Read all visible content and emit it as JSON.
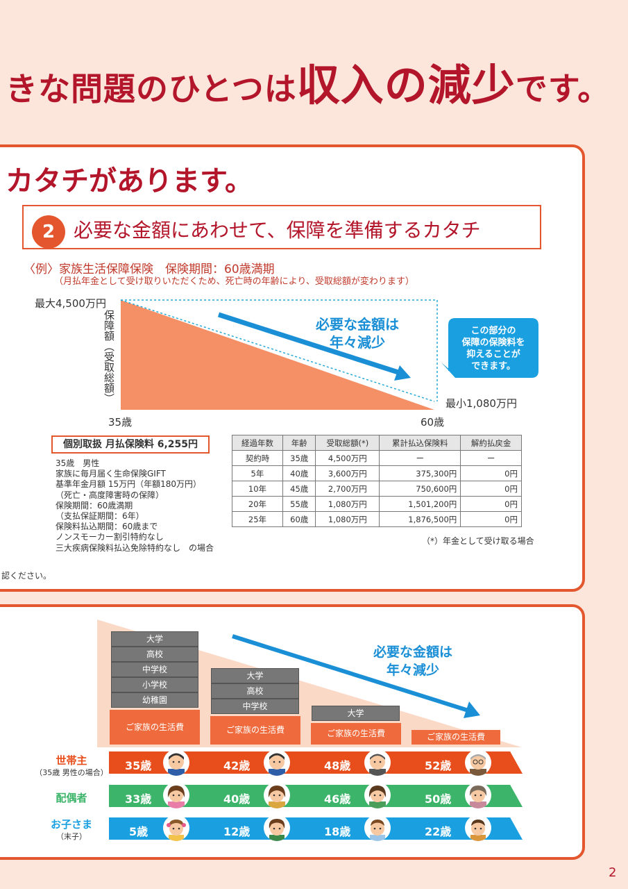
{
  "headline": {
    "pre": "きな問題のひとつは",
    "emph": "収入の減少",
    "post": "です。"
  },
  "panel1": {
    "title": "カタチがあります。",
    "number": "2",
    "subtitle": "必要な金額にあわせて、保障を準備するカタチ",
    "example_title": "〈例〉家族生活保障保険　保険期間：60歳満期",
    "example_note": "（月払年金として受け取りいただくため、死亡時の年齢により、受取総額が変わります）",
    "chart": {
      "max_label": "最大4,500万円",
      "min_label": "最小1,080万円",
      "y_axis_label": "保障額（受取総額）",
      "x_start": "35歳",
      "x_end": "60歳",
      "arrow_text_1": "必要な金額は",
      "arrow_text_2": "年々減少",
      "bubble_1": "この部分の",
      "bubble_2": "保障の保険料を",
      "bubble_3": "抑えることが",
      "bubble_4": "できます。"
    },
    "premium": "個別取扱 月払保険料 6,255円",
    "info": [
      "35歳　男性",
      "家族に毎月届く生命保険GIFT",
      "基準年金月額 15万円（年額180万円）",
      "（死亡・高度障害時の保障）",
      "保険期間：60歳満期",
      "（支払保証期間：6年）",
      "保険料払込期間：60歳まで",
      "ノンスモーカー割引特約なし",
      "三大疾病保険料払込免除特約なし　の場合"
    ],
    "table": {
      "headers": [
        "経過年数",
        "年齢",
        "受取総額(*)",
        "累計払込保険料",
        "解約払戻金"
      ],
      "rows": [
        [
          "契約時",
          "35歳",
          "4,500万円",
          "ー",
          "ー"
        ],
        [
          "5年",
          "40歳",
          "3,600万円",
          "375,300円",
          "0円"
        ],
        [
          "10年",
          "45歳",
          "2,700万円",
          "750,600円",
          "0円"
        ],
        [
          "20年",
          "55歳",
          "1,080万円",
          "1,501,200円",
          "0円"
        ],
        [
          "25年",
          "60歳",
          "1,080万円",
          "1,876,500円",
          "0円"
        ]
      ]
    },
    "table_note": "（*）年金として受け取る場合",
    "check_text": "認ください。"
  },
  "panel2": {
    "arrow_text_1": "必要な金額は",
    "arrow_text_2": "年々減少",
    "columns": [
      {
        "stack": [
          "大学",
          "高校",
          "中学校",
          "小学校",
          "幼稚園"
        ],
        "living": "ご家族の生活費",
        "ages": [
          "35歳",
          "33歳",
          "5歳"
        ]
      },
      {
        "stack": [
          "大学",
          "高校",
          "中学校"
        ],
        "living": "ご家族の生活費",
        "ages": [
          "42歳",
          "40歳",
          "12歳"
        ]
      },
      {
        "stack": [
          "大学"
        ],
        "living": "ご家族の生活費",
        "ages": [
          "48歳",
          "46歳",
          "18歳"
        ]
      },
      {
        "stack": [],
        "living": "ご家族の生活費",
        "ages": [
          "52歳",
          "50歳",
          "22歳"
        ]
      }
    ],
    "rows": [
      {
        "label": "世帯主",
        "sub": "（35歳 男性の場合）",
        "color": "#e84e1b"
      },
      {
        "label": "配偶者",
        "sub": "",
        "color": "#3cb56a"
      },
      {
        "label": "お子さま",
        "sub": "（末子）",
        "color": "#1aa0e0"
      }
    ]
  },
  "page_number": "2"
}
